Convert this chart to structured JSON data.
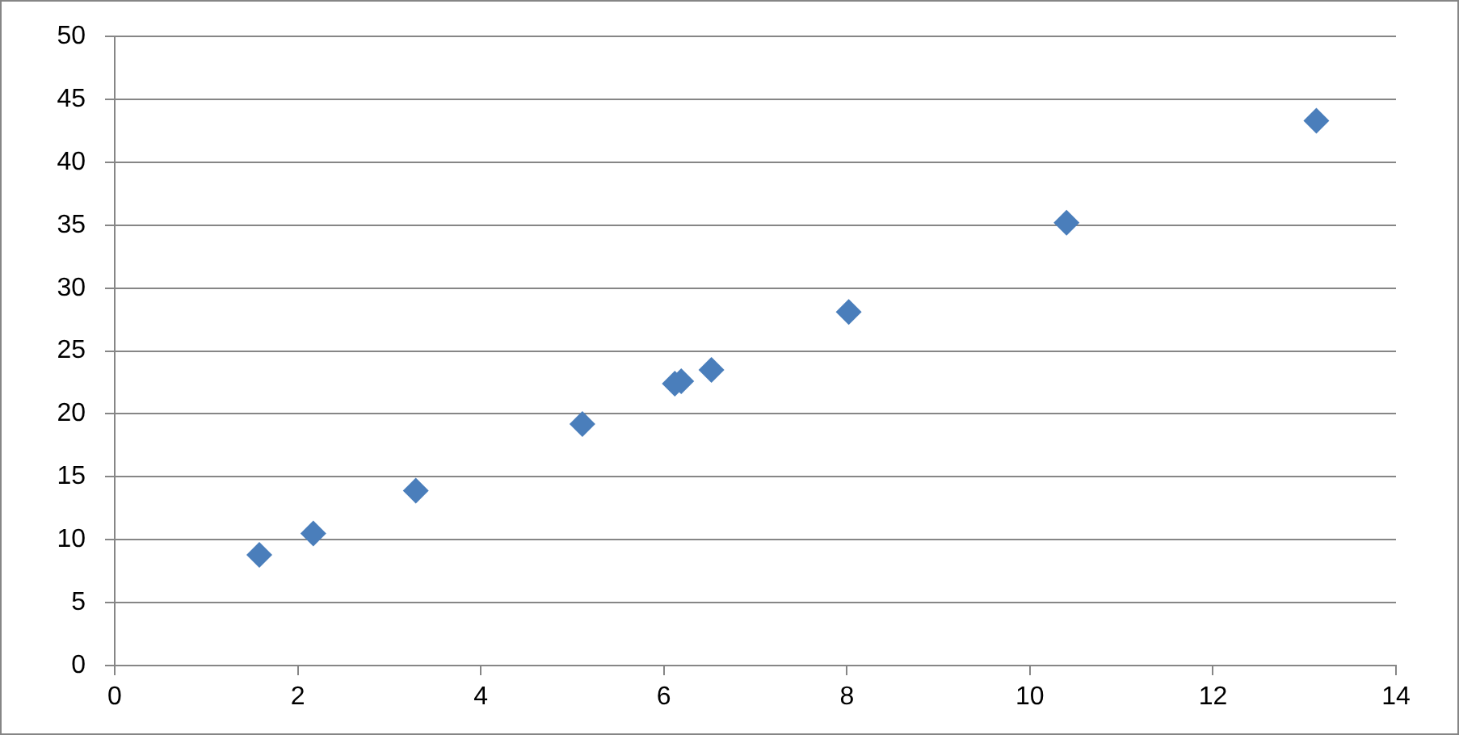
{
  "chart_data": {
    "type": "scatter",
    "x": [
      1.58,
      2.17,
      3.29,
      5.11,
      6.12,
      6.19,
      6.52,
      8.02,
      10.4,
      13.13
    ],
    "series": [
      {
        "color": "#4a7ebb",
        "values": [
          8.8,
          10.5,
          13.9,
          19.2,
          22.4,
          22.6,
          23.5,
          28.1,
          35.2,
          43.3
        ]
      }
    ],
    "xlim": [
      0,
      14
    ],
    "xticks": [
      0,
      2,
      4,
      6,
      8,
      10,
      12,
      14
    ],
    "ylim": [
      0,
      50
    ],
    "yticks": [
      0,
      5,
      10,
      15,
      20,
      25,
      30,
      35,
      40,
      45,
      50
    ],
    "grid": "y",
    "marker": "diamond",
    "legend": false
  }
}
